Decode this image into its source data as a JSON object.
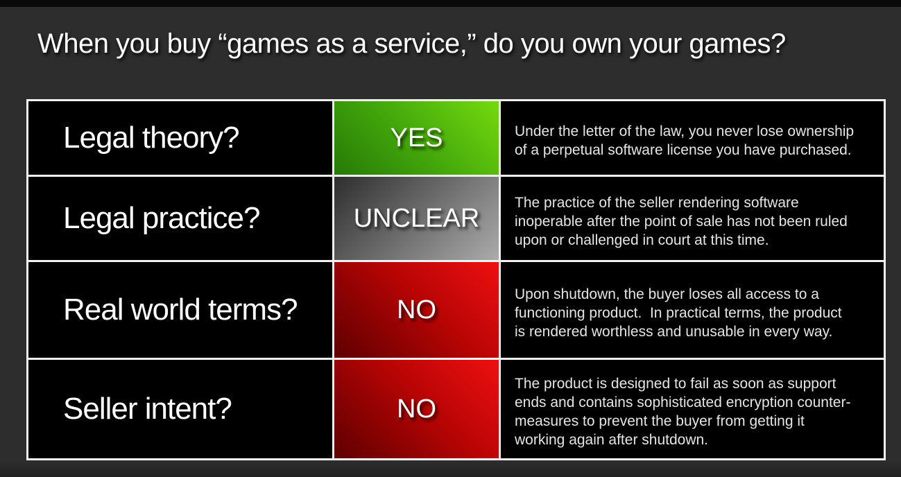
{
  "slide": {
    "title": "When you buy “games as a service,” do you own your games?"
  },
  "colors": {
    "background": "#2d2d2d",
    "top_bar": "#0a0a0a",
    "grid_lines": "#f2f2f2",
    "cell_background": "#000000",
    "yes_green_dark": "#267a06",
    "yes_green_bright": "#74da0e",
    "unclear_gray_dark": "#2e2e2e",
    "unclear_gray_light": "#ababab",
    "no_red_dark": "#5e0000",
    "no_red_bright": "#ee1010",
    "text_white": "#ffffff",
    "text_light": "#e5e5e5"
  },
  "table": {
    "rows": [
      {
        "question": "Legal theory?",
        "verdict": "YES",
        "verdict_style": "green",
        "explanation": "Under the letter of the law, you never lose ownership of a perpetual software license you have purchased."
      },
      {
        "question": "Legal practice?",
        "verdict": "UNCLEAR",
        "verdict_style": "gray",
        "explanation": "The practice of the seller rendering software inoperable after the point of sale has not been ruled upon or challenged in court at this time."
      },
      {
        "question": "Real world terms?",
        "verdict": "NO",
        "verdict_style": "red",
        "explanation": "Upon shutdown, the buyer loses all access to a functioning product.  In practical terms, the product is rendered worthless and unusable in every way."
      },
      {
        "question": "Seller intent?",
        "verdict": "NO",
        "verdict_style": "red",
        "explanation": "The product is designed to fail as soon as support ends and contains sophisticated encryption counter-measures to prevent the buyer from getting it working again after shutdown."
      }
    ]
  }
}
